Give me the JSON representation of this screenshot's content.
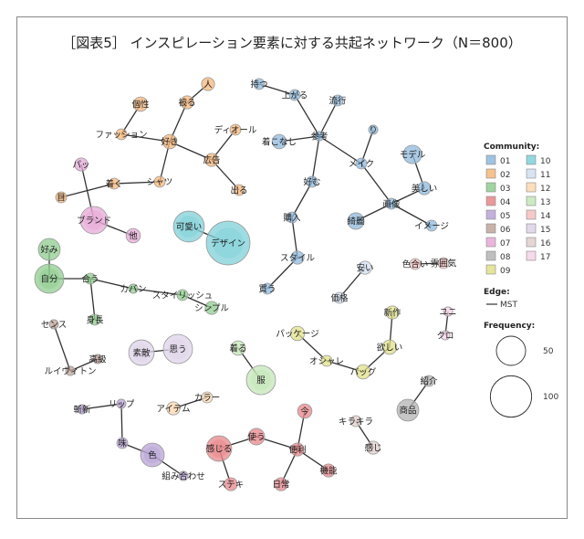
{
  "title": "［図表5］ インスピレーション要素に対する共起ネットワーク（N＝800）",
  "legend": {
    "community_title": "Community:",
    "communities": [
      {
        "id": "01",
        "color": "#8fb8dc"
      },
      {
        "id": "02",
        "color": "#f5b77a"
      },
      {
        "id": "03",
        "color": "#8fcc8f"
      },
      {
        "id": "04",
        "color": "#e8868a"
      },
      {
        "id": "05",
        "color": "#b8a3d6"
      },
      {
        "id": "06",
        "color": "#bfa49b"
      },
      {
        "id": "07",
        "color": "#e6a8d6"
      },
      {
        "id": "08",
        "color": "#b3b3b3"
      },
      {
        "id": "09",
        "color": "#e0e08a"
      },
      {
        "id": "10",
        "color": "#7fd0d8"
      },
      {
        "id": "11",
        "color": "#d2dff0"
      },
      {
        "id": "12",
        "color": "#fbd8b0"
      },
      {
        "id": "13",
        "color": "#c4e6b8"
      },
      {
        "id": "14",
        "color": "#f5c0c0"
      },
      {
        "id": "15",
        "color": "#ddd3e8"
      },
      {
        "id": "16",
        "color": "#e0cfcc"
      },
      {
        "id": "17",
        "color": "#f5d2e6"
      }
    ],
    "edge_title": "Edge:",
    "edge_label": "MST",
    "frequency_title": "Frequency:",
    "frequency_levels": [
      50,
      100
    ]
  },
  "nodes": [
    {
      "label": "人",
      "community": "02",
      "freq": 10
    },
    {
      "label": "被る",
      "community": "02",
      "freq": 10
    },
    {
      "label": "個性",
      "community": "02",
      "freq": 12
    },
    {
      "label": "ファッション",
      "community": "02",
      "freq": 7
    },
    {
      "label": "好き",
      "community": "02",
      "freq": 12
    },
    {
      "label": "ディオール",
      "community": "02",
      "freq": 7
    },
    {
      "label": "広告",
      "community": "02",
      "freq": 10
    },
    {
      "label": "出る",
      "community": "02",
      "freq": 7
    },
    {
      "label": "シャツ",
      "community": "02",
      "freq": 7
    },
    {
      "label": "着く",
      "community": "02",
      "freq": 7
    },
    {
      "label": "目",
      "community": "02",
      "freq": 7
    },
    {
      "label": "パッ",
      "community": "07",
      "freq": 10
    },
    {
      "label": "ブランド",
      "community": "07",
      "freq": 44
    },
    {
      "label": "他",
      "community": "07",
      "freq": 12
    },
    {
      "label": "可愛い",
      "community": "10",
      "freq": 56
    },
    {
      "label": "デザイン",
      "community": "10",
      "freq": 112
    },
    {
      "label": "好み",
      "community": "03",
      "freq": 28
    },
    {
      "label": "自分",
      "community": "03",
      "freq": 50
    },
    {
      "label": "合う",
      "community": "03",
      "freq": 7
    },
    {
      "label": "カバン",
      "community": "03",
      "freq": 5
    },
    {
      "label": "スタイリッシュ",
      "community": "03",
      "freq": 7
    },
    {
      "label": "シンプル",
      "community": "03",
      "freq": 10
    },
    {
      "label": "身長",
      "community": "03",
      "freq": 7
    },
    {
      "label": "センス",
      "community": "06",
      "freq": 5
    },
    {
      "label": "ルイヴィトン",
      "community": "06",
      "freq": 5
    },
    {
      "label": "高級",
      "community": "06",
      "freq": 5
    },
    {
      "label": "素敵",
      "community": "15",
      "freq": 38
    },
    {
      "label": "思う",
      "community": "15",
      "freq": 50
    },
    {
      "label": "着る",
      "community": "13",
      "freq": 12
    },
    {
      "label": "服",
      "community": "13",
      "freq": 50
    },
    {
      "label": "斬新",
      "community": "05",
      "freq": 5
    },
    {
      "label": "リップ",
      "community": "05",
      "freq": 5
    },
    {
      "label": "味",
      "community": "05",
      "freq": 7
    },
    {
      "label": "色",
      "community": "05",
      "freq": 33
    },
    {
      "label": "組み合わせ",
      "community": "05",
      "freq": 5
    },
    {
      "label": "アイテム",
      "community": "12",
      "freq": 10
    },
    {
      "label": "カラー",
      "community": "12",
      "freq": 7
    },
    {
      "label": "感じる",
      "community": "04",
      "freq": 38
    },
    {
      "label": "使う",
      "community": "04",
      "freq": 16
    },
    {
      "label": "今",
      "community": "04",
      "freq": 12
    },
    {
      "label": "便利",
      "community": "04",
      "freq": 10
    },
    {
      "label": "機能",
      "community": "04",
      "freq": 10
    },
    {
      "label": "日常",
      "community": "04",
      "freq": 10
    },
    {
      "label": "ステキ",
      "community": "04",
      "freq": 10
    },
    {
      "label": "持つ",
      "community": "01",
      "freq": 7
    },
    {
      "label": "上がる",
      "community": "01",
      "freq": 7
    },
    {
      "label": "流行",
      "community": "01",
      "freq": 7
    },
    {
      "label": "参考",
      "community": "01",
      "freq": 5
    },
    {
      "label": "着こなし",
      "community": "01",
      "freq": 12
    },
    {
      "label": "好む",
      "community": "01",
      "freq": 7
    },
    {
      "label": "購入",
      "community": "01",
      "freq": 7
    },
    {
      "label": "スタイル",
      "community": "01",
      "freq": 10
    },
    {
      "label": "買う",
      "community": "01",
      "freq": 7
    },
    {
      "label": "り",
      "community": "01",
      "freq": 5
    },
    {
      "label": "メイク",
      "community": "01",
      "freq": 7
    },
    {
      "label": "モデル",
      "community": "01",
      "freq": 20
    },
    {
      "label": "美しい",
      "community": "01",
      "freq": 10
    },
    {
      "label": "画像",
      "community": "01",
      "freq": 7
    },
    {
      "label": "綺麗",
      "community": "01",
      "freq": 16
    },
    {
      "label": "イメージ",
      "community": "01",
      "freq": 7
    },
    {
      "label": "安い",
      "community": "11",
      "freq": 10
    },
    {
      "label": "価格",
      "community": "11",
      "freq": 7
    },
    {
      "label": "色合い",
      "community": "14",
      "freq": 7
    },
    {
      "label": "雰囲気",
      "community": "14",
      "freq": 7
    },
    {
      "label": "ユニ",
      "community": "17",
      "freq": 5
    },
    {
      "label": "クロ",
      "community": "17",
      "freq": 5
    },
    {
      "label": "新作",
      "community": "09",
      "freq": 10
    },
    {
      "label": "パッケージ",
      "community": "09",
      "freq": 12
    },
    {
      "label": "欲しい",
      "community": "09",
      "freq": 12
    },
    {
      "label": "オシャレ",
      "community": "09",
      "freq": 7
    },
    {
      "label": "バッグ",
      "community": "09",
      "freq": 12
    },
    {
      "label": "紹介",
      "community": "08",
      "freq": 7
    },
    {
      "label": "商品",
      "community": "08",
      "freq": 28
    },
    {
      "label": "キラキラ",
      "community": "16",
      "freq": 7
    },
    {
      "label": "感じ",
      "community": "16",
      "freq": 10
    }
  ],
  "edges": [
    [
      "人",
      "被る"
    ],
    [
      "被る",
      "好き"
    ],
    [
      "個性",
      "ファッション"
    ],
    [
      "ファッション",
      "好き"
    ],
    [
      "好き",
      "広告"
    ],
    [
      "ディオール",
      "広告"
    ],
    [
      "広告",
      "出る"
    ],
    [
      "好き",
      "シャツ"
    ],
    [
      "シャツ",
      "着く"
    ],
    [
      "着く",
      "目"
    ],
    [
      "パッ",
      "ブランド"
    ],
    [
      "ブランド",
      "他"
    ],
    [
      "可愛い",
      "デザイン"
    ],
    [
      "好み",
      "自分"
    ],
    [
      "自分",
      "合う"
    ],
    [
      "合う",
      "カバン"
    ],
    [
      "カバン",
      "スタイリッシュ"
    ],
    [
      "スタイリッシュ",
      "シンプル"
    ],
    [
      "合う",
      "身長"
    ],
    [
      "センス",
      "ルイヴィトン"
    ],
    [
      "ルイヴィトン",
      "高級"
    ],
    [
      "素敵",
      "思う"
    ],
    [
      "着る",
      "服"
    ],
    [
      "斬新",
      "リップ"
    ],
    [
      "リップ",
      "味"
    ],
    [
      "味",
      "色"
    ],
    [
      "色",
      "組み合わせ"
    ],
    [
      "アイテム",
      "カラー"
    ],
    [
      "感じる",
      "使う"
    ],
    [
      "使う",
      "便利"
    ],
    [
      "今",
      "便利"
    ],
    [
      "便利",
      "機能"
    ],
    [
      "便利",
      "日常"
    ],
    [
      "感じる",
      "ステキ"
    ],
    [
      "持つ",
      "上がる"
    ],
    [
      "上がる",
      "参考"
    ],
    [
      "流行",
      "参考"
    ],
    [
      "着こなし",
      "参考"
    ],
    [
      "参考",
      "好む"
    ],
    [
      "好む",
      "購入"
    ],
    [
      "購入",
      "スタイル"
    ],
    [
      "スタイル",
      "買う"
    ],
    [
      "参考",
      "メイク"
    ],
    [
      "り",
      "メイク"
    ],
    [
      "メイク",
      "画像"
    ],
    [
      "画像",
      "美しい"
    ],
    [
      "モデル",
      "美しい"
    ],
    [
      "画像",
      "綺麗"
    ],
    [
      "画像",
      "イメージ"
    ],
    [
      "安い",
      "価格"
    ],
    [
      "色合い",
      "雰囲気"
    ],
    [
      "ユニ",
      "クロ"
    ],
    [
      "パッケージ",
      "オシャレ"
    ],
    [
      "オシャレ",
      "バッグ"
    ],
    [
      "バッグ",
      "欲しい"
    ],
    [
      "欲しい",
      "新作"
    ],
    [
      "紹介",
      "商品"
    ],
    [
      "キラキラ",
      "感じ"
    ]
  ]
}
